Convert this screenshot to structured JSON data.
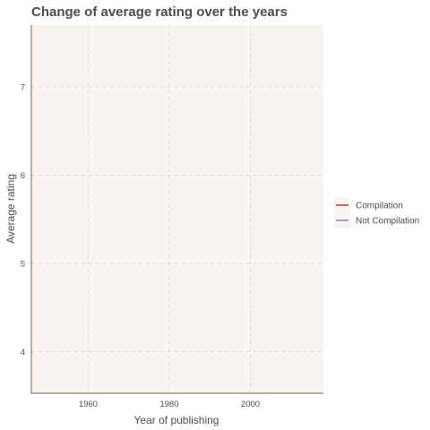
{
  "chart_data": {
    "type": "line",
    "title": "Change of average rating over the years",
    "xlabel": "Year of publishing",
    "ylabel": "Average rating",
    "xlim": [
      1946,
      2018
    ],
    "ylim": [
      3.53,
      7.7
    ],
    "x_ticks": [
      1960,
      1980,
      2000
    ],
    "y_ticks": [
      4,
      5,
      6,
      7
    ],
    "grid": true,
    "legend_position": "right",
    "series": [
      {
        "name": "Compilation",
        "color": "#c0392b",
        "x": [],
        "y": []
      },
      {
        "name": "Not Compilation",
        "color": "#8b7fd6",
        "x": [],
        "y": []
      }
    ],
    "panel_background": "#f8f5f0",
    "grid_color": "#dcd6ce",
    "axis_line_color": "#8b5a3c"
  }
}
